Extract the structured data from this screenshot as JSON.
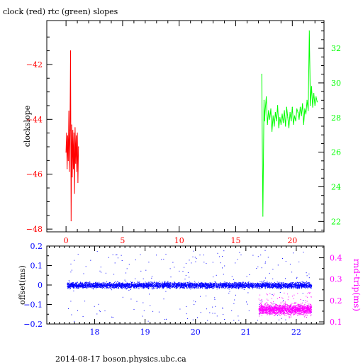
{
  "page": {
    "title": "clock (red) rtc (green) slopes",
    "footer": "2014-08-17 boson.physics.ubc.ca"
  },
  "colors": {
    "clock": "#ff0000",
    "rtc": "#00ff00",
    "offset": "#0000ff",
    "roundtrip": "#ff00ff",
    "frame": "#000000"
  },
  "chart_data": [
    {
      "type": "line",
      "x_ticks": [
        "0",
        "5",
        "10",
        "15",
        "20"
      ],
      "xlim": [
        -1.7,
        22.8
      ],
      "ylabel": "clockslope",
      "y_ticks": [
        "-42",
        "-44",
        "-46",
        "-48"
      ],
      "ylim": [
        -48.1,
        -40.4
      ],
      "y2_ticks": [
        "32",
        "30",
        "28",
        "26",
        "24",
        "22"
      ],
      "y2lim": [
        21.4,
        33.6
      ],
      "series": [
        {
          "name": "clock",
          "axis": "left",
          "x": [
            0.0,
            0.05,
            0.1,
            0.15,
            0.2,
            0.25,
            0.3,
            0.35,
            0.4,
            0.45,
            0.5,
            0.55,
            0.6,
            0.65,
            0.7,
            0.75,
            0.8,
            0.85,
            0.9,
            0.95,
            1.0,
            1.05,
            1.1
          ],
          "y": [
            -45.2,
            -44.5,
            -45.8,
            -44.6,
            -45.5,
            -43.7,
            -45.9,
            -44.4,
            -41.5,
            -47.7,
            -44.2,
            -46.1,
            -44.4,
            -45.8,
            -44.5,
            -46.7,
            -44.3,
            -45.6,
            -44.6,
            -45.9,
            -44.5,
            -46.3,
            -45.0
          ]
        },
        {
          "name": "rtc",
          "axis": "right",
          "x": [
            17.3,
            17.4,
            17.5,
            17.55,
            17.6,
            17.7,
            17.8,
            17.9,
            18.0,
            18.1,
            18.2,
            18.3,
            18.4,
            18.5,
            18.6,
            18.7,
            18.8,
            18.9,
            19.0,
            19.1,
            19.2,
            19.3,
            19.4,
            19.5,
            19.6,
            19.7,
            19.8,
            19.9,
            20.0,
            20.1,
            20.2,
            20.3,
            20.4,
            20.5,
            20.6,
            20.7,
            20.8,
            20.9,
            21.0,
            21.1,
            21.2,
            21.3,
            21.4,
            21.5,
            21.6,
            21.7,
            21.8,
            21.9,
            22.0,
            22.1,
            22.2
          ],
          "y": [
            30.5,
            22.3,
            29.0,
            27.8,
            28.4,
            29.2,
            27.6,
            28.4,
            27.9,
            28.5,
            27.2,
            28.1,
            27.5,
            28.3,
            27.8,
            28.7,
            27.4,
            28.0,
            27.6,
            28.2,
            27.7,
            28.4,
            27.5,
            28.6,
            28.0,
            27.4,
            28.3,
            27.8,
            28.6,
            27.6,
            28.1,
            27.8,
            28.5,
            28.3,
            27.9,
            28.6,
            28.1,
            28.8,
            27.6,
            28.5,
            28.2,
            29.0,
            28.4,
            33.0,
            28.7,
            29.8,
            28.6,
            29.4,
            28.7,
            29.2,
            28.9
          ]
        }
      ]
    },
    {
      "type": "scatter",
      "x_ticks": [
        "18",
        "19",
        "20",
        "21",
        "22"
      ],
      "xlim": [
        17.05,
        22.55
      ],
      "ylabel": "offset(ms)",
      "y_ticks": [
        "0.2",
        "0.1",
        "0",
        "-0.1",
        "-0.2"
      ],
      "ylim": [
        -0.2,
        0.2
      ],
      "y2label": "rnd-trip(ms)",
      "y2_ticks": [
        "0.4",
        "0.3",
        "0.2",
        "0.1"
      ],
      "y2lim": [
        0.09,
        0.455
      ],
      "series": [
        {
          "name": "offset",
          "axis": "left",
          "x_range": [
            17.45,
            22.3
          ],
          "typical_range": [
            -0.025,
            0.025
          ],
          "outlier_range": [
            -0.185,
            0.18
          ]
        },
        {
          "name": "roundtrip",
          "axis": "right",
          "x_range": [
            21.25,
            22.3
          ],
          "typical_range": [
            0.12,
            0.2
          ],
          "outlier_range": [
            0.12,
            0.24
          ]
        }
      ]
    }
  ]
}
